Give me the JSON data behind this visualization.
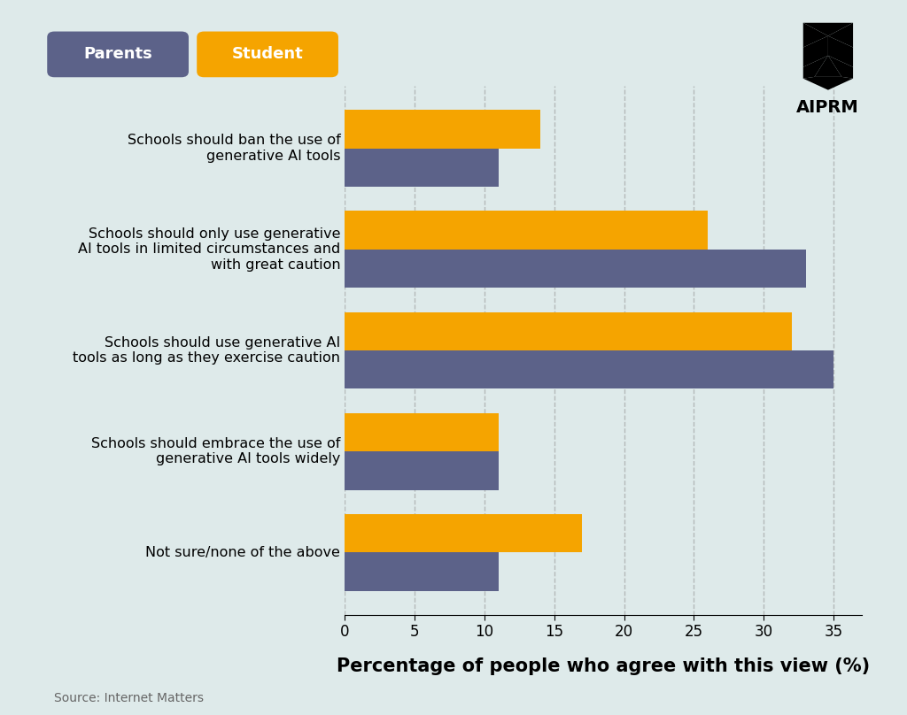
{
  "categories": [
    "Schools should ban the use of\ngenerative AI tools",
    "Schools should only use generative\nAI tools in limited circumstances and\nwith great caution",
    "Schools should use generative AI\ntools as long as they exercise caution",
    "Schools should embrace the use of\ngenerative AI tools widely",
    "Not sure/none of the above"
  ],
  "parents": [
    11,
    33,
    35,
    11,
    11
  ],
  "students": [
    14,
    26,
    32,
    11,
    17
  ],
  "parents_color": "#5c6289",
  "students_color": "#f5a400",
  "background_color": "#deeaea",
  "xlabel": "Percentage of people who agree with this view (%)",
  "xlim": [
    0,
    37
  ],
  "xticks": [
    0,
    5,
    10,
    15,
    20,
    25,
    30,
    35
  ],
  "source": "Source: Internet Matters",
  "legend_parents_label": "Parents",
  "legend_students_label": "Student",
  "bar_height": 0.38,
  "grid_color": "#999999",
  "xlabel_fontsize": 15,
  "tick_fontsize": 12,
  "label_fontsize": 11.5,
  "source_fontsize": 10
}
